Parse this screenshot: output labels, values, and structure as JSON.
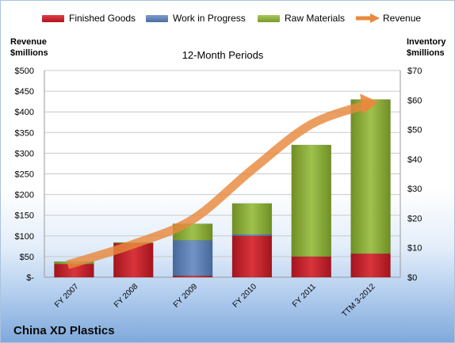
{
  "legend": {
    "finished_goods": "Finished Goods",
    "wip": "Work in Progress",
    "raw_materials": "Raw Materials",
    "revenue": "Revenue"
  },
  "axes": {
    "left_title_line1": "Revenue",
    "left_title_line2": "$millions",
    "right_title_line1": "Inventory",
    "right_title_line2": "$millions"
  },
  "chart_title": "12-Month Periods",
  "brand": "China XD Plastics",
  "colors": {
    "finished_goods": "#c8202b",
    "wip": "#5b7fb5",
    "raw_materials": "#8aac3c",
    "revenue": "#e8893d"
  },
  "chart_data": {
    "type": "bar",
    "title": "12-Month Periods",
    "stacked": true,
    "categories": [
      "FY 2007",
      "FY 2008",
      "FY 2009",
      "FY 2010",
      "FY 2011",
      "TTM 3-2012"
    ],
    "left_axis": {
      "label": "Revenue $millions",
      "min": 0,
      "max": 500,
      "step": 50,
      "ticks": [
        "$-",
        "$50",
        "$100",
        "$150",
        "$200",
        "$250",
        "$300",
        "$350",
        "$400",
        "$450",
        "$500"
      ]
    },
    "right_axis": {
      "label": "Inventory $millions",
      "min": 0,
      "max": 70,
      "step": 10,
      "ticks": [
        "$0",
        "$10",
        "$20",
        "$30",
        "$40",
        "$50",
        "$60",
        "$70"
      ]
    },
    "series": [
      {
        "name": "Finished Goods",
        "axis": "right",
        "values": [
          4.5,
          11.5,
          0.5,
          14.0,
          7.0,
          8.0
        ]
      },
      {
        "name": "Work in Progress",
        "axis": "right",
        "values": [
          0,
          0,
          12.0,
          0.5,
          0,
          0
        ]
      },
      {
        "name": "Raw Materials",
        "axis": "right",
        "values": [
          0.8,
          0.3,
          5.6,
          10.5,
          37.8,
          52.2
        ]
      },
      {
        "name": "Revenue",
        "axis": "left",
        "type": "line",
        "values": [
          30,
          80,
          140,
          260,
          370,
          420
        ]
      }
    ],
    "grid": true,
    "legend_position": "top"
  }
}
